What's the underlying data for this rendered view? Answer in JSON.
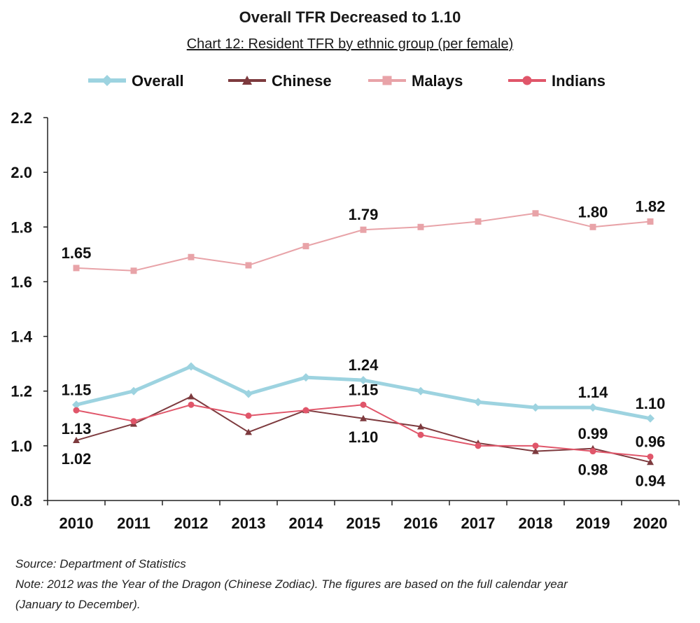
{
  "title": "Overall TFR Decreased to 1.10",
  "subtitle": "Chart 12: Resident TFR by ethnic group (per female)",
  "source": "Source: Department of Statistics",
  "note": "Note: 2012 was the Year of the Dragon (Chinese Zodiac). The figures are based on the full calendar year",
  "note2": "(January to December).",
  "chart_data": {
    "type": "line",
    "title": "Overall TFR Decreased to 1.10",
    "subtitle": "Chart 12: Resident TFR by ethnic group (per female)",
    "x": [
      "2010",
      "2011",
      "2012",
      "2013",
      "2014",
      "2015",
      "2016",
      "2017",
      "2018",
      "2019",
      "2020"
    ],
    "ylim": [
      0.8,
      2.2
    ],
    "yticks": [
      "0.8",
      "1.0",
      "1.2",
      "1.4",
      "1.6",
      "1.8",
      "2.0",
      "2.2"
    ],
    "grid": false,
    "legend_position": "top",
    "series": [
      {
        "name": "Overall",
        "marker": "diamond",
        "color": "#9dd3e0",
        "width": 5,
        "values": [
          1.15,
          1.2,
          1.29,
          1.19,
          1.25,
          1.24,
          1.2,
          1.16,
          1.14,
          1.14,
          1.1
        ]
      },
      {
        "name": "Chinese",
        "marker": "triangle",
        "color": "#7d3a3e",
        "width": 2,
        "values": [
          1.02,
          1.08,
          1.18,
          1.05,
          1.13,
          1.1,
          1.07,
          1.01,
          0.98,
          0.99,
          0.94
        ]
      },
      {
        "name": "Malays",
        "marker": "square",
        "color": "#e8a3a8",
        "width": 2,
        "values": [
          1.65,
          1.64,
          1.69,
          1.66,
          1.73,
          1.79,
          1.8,
          1.82,
          1.85,
          1.8,
          1.82
        ]
      },
      {
        "name": "Indians",
        "marker": "circle",
        "color": "#e0566a",
        "width": 2,
        "values": [
          1.13,
          1.09,
          1.15,
          1.11,
          1.13,
          1.15,
          1.04,
          1.0,
          1.0,
          0.98,
          0.96
        ]
      }
    ],
    "data_labels": [
      {
        "series": "Malays",
        "index": 0,
        "text": "1.65",
        "pos": "above"
      },
      {
        "series": "Malays",
        "index": 5,
        "text": "1.79",
        "pos": "above"
      },
      {
        "series": "Malays",
        "index": 9,
        "text": "1.80",
        "pos": "above"
      },
      {
        "series": "Malays",
        "index": 10,
        "text": "1.82",
        "pos": "above"
      },
      {
        "series": "Overall",
        "index": 0,
        "text": "1.15",
        "pos": "above"
      },
      {
        "series": "Overall",
        "index": 5,
        "text": "1.24",
        "pos": "above"
      },
      {
        "series": "Overall",
        "index": 9,
        "text": "1.14",
        "pos": "above"
      },
      {
        "series": "Overall",
        "index": 10,
        "text": "1.10",
        "pos": "above"
      },
      {
        "series": "Indians",
        "index": 0,
        "text": "1.13",
        "pos": "below"
      },
      {
        "series": "Indians",
        "index": 5,
        "text": "1.15",
        "pos": "above"
      },
      {
        "series": "Indians",
        "index": 10,
        "text": "0.96",
        "pos": "above"
      },
      {
        "series": "Chinese",
        "index": 0,
        "text": "1.02",
        "pos": "below"
      },
      {
        "series": "Chinese",
        "index": 5,
        "text": "1.10",
        "pos": "below"
      },
      {
        "series": "Chinese",
        "index": 9,
        "text": "0.99",
        "pos": "above"
      },
      {
        "series": "Chinese",
        "index": 10,
        "text": "0.94",
        "pos": "below"
      },
      {
        "series": "Indians",
        "index": 9,
        "text": "0.98",
        "pos": "below"
      }
    ]
  }
}
